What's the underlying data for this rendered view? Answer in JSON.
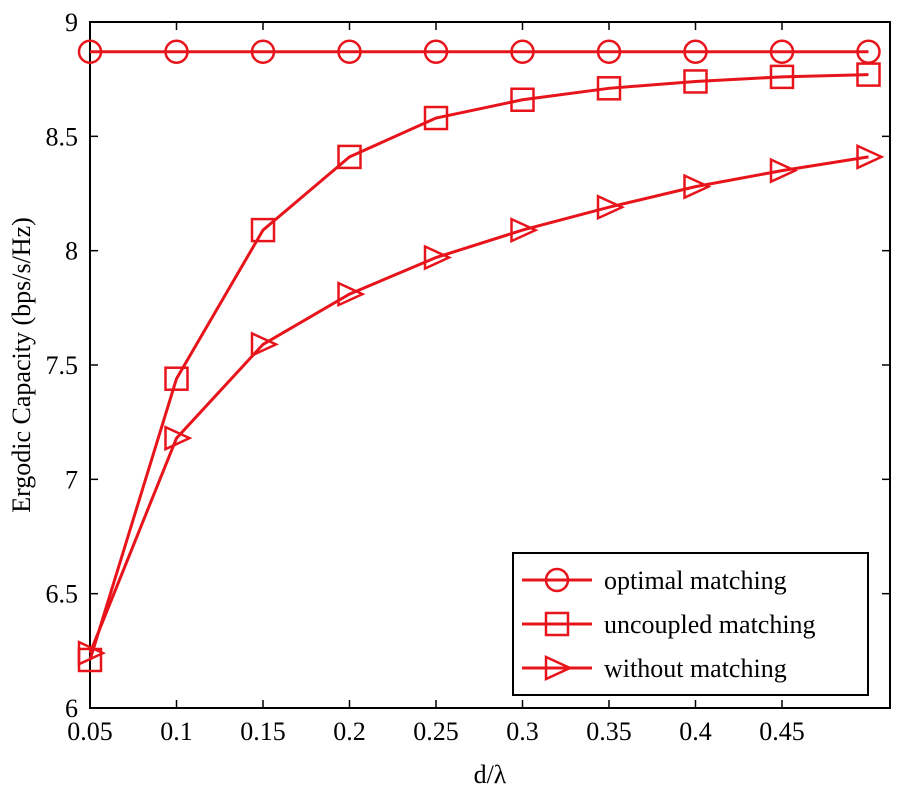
{
  "chart_data": {
    "type": "line",
    "xlabel": "d/λ",
    "ylabel": "Ergodic Capacity (bps/s/Hz)",
    "xlim": [
      0.05,
      0.5
    ],
    "ylim": [
      6,
      9
    ],
    "x_ticks": [
      "0.05",
      "0.1",
      "0.15",
      "0.2",
      "0.25",
      "0.3",
      "0.35",
      "0.4",
      "0.45"
    ],
    "y_ticks": [
      "6",
      "6.5",
      "7",
      "7.5",
      "8",
      "8.5",
      "9"
    ],
    "grid": false,
    "legend_position": "bottom-right",
    "line_color": "#e8141b",
    "x": [
      0.05,
      0.1,
      0.15,
      0.2,
      0.25,
      0.3,
      0.35,
      0.4,
      0.45,
      0.5
    ],
    "series": [
      {
        "name": "optimal matching",
        "marker": "circle",
        "values": [
          8.87,
          8.87,
          8.87,
          8.87,
          8.87,
          8.87,
          8.87,
          8.87,
          8.87,
          8.87
        ]
      },
      {
        "name": "uncoupled matching",
        "marker": "square",
        "values": [
          6.21,
          7.44,
          8.09,
          8.41,
          8.58,
          8.66,
          8.71,
          8.74,
          8.76,
          8.77
        ]
      },
      {
        "name": "without matching",
        "marker": "triangle-right",
        "values": [
          6.24,
          7.18,
          7.59,
          7.81,
          7.97,
          8.09,
          8.19,
          8.28,
          8.35,
          8.41
        ]
      }
    ]
  }
}
